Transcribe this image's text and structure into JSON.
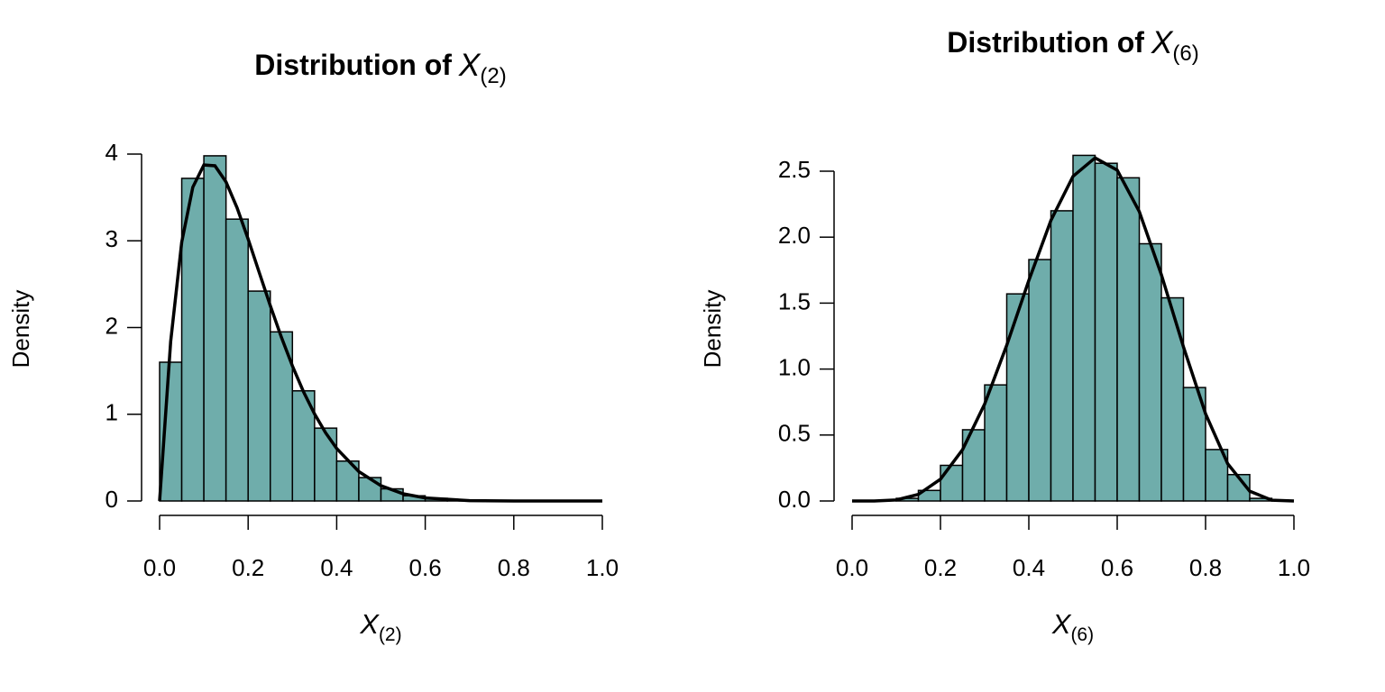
{
  "chart_data": [
    {
      "type": "histogram",
      "title": {
        "text": "Distribution of",
        "symbol": "X",
        "subscript": "(2)"
      },
      "x_label": {
        "symbol": "X",
        "subscript": "(2)"
      },
      "y_label": "Density",
      "bins": [
        0,
        0.05,
        0.1,
        0.15,
        0.2,
        0.25,
        0.3,
        0.35,
        0.4,
        0.45,
        0.5,
        0.55,
        0.6,
        0.65,
        0.7,
        0.75,
        0.8,
        0.85,
        0.9,
        0.95,
        1
      ],
      "values": [
        1.6,
        3.72,
        3.98,
        3.25,
        2.42,
        1.95,
        1.27,
        0.84,
        0.46,
        0.27,
        0.14,
        0.06,
        0.03,
        0.01,
        0,
        0,
        0,
        0,
        0,
        0
      ],
      "color": "#6fadab",
      "xlim": [
        0,
        1
      ],
      "xticks": [
        {
          "value": 0,
          "label": "0.0"
        },
        0.2,
        0.4,
        0.6,
        0.8,
        {
          "value": 1,
          "label": "1.0"
        }
      ],
      "ylim": [
        0,
        4
      ],
      "yticks": [
        0,
        1,
        2,
        3,
        4
      ],
      "curve": {
        "color": "#000000",
        "x": [
          0,
          0.025,
          0.05,
          0.075,
          0.1,
          0.125,
          0.15,
          0.175,
          0.2,
          0.225,
          0.25,
          0.275,
          0.3,
          0.325,
          0.35,
          0.375,
          0.4,
          0.45,
          0.5,
          0.55,
          0.6,
          0.7,
          0.8,
          0.9,
          1
        ],
        "y": [
          0,
          1.838,
          2.985,
          3.618,
          3.874,
          3.865,
          3.679,
          3.38,
          3.02,
          2.635,
          2.253,
          1.889,
          1.557,
          1.26,
          1.004,
          0.786,
          0.605,
          0.339,
          0.176,
          0.083,
          0.035,
          0.004,
          0,
          0,
          0
        ]
      }
    },
    {
      "type": "histogram",
      "title": {
        "text": "Distribution of",
        "symbol": "X",
        "subscript": "(6)"
      },
      "x_label": {
        "symbol": "X",
        "subscript": "(6)"
      },
      "y_label": "Density",
      "bins": [
        0,
        0.05,
        0.1,
        0.15,
        0.2,
        0.25,
        0.3,
        0.35,
        0.4,
        0.45,
        0.5,
        0.55,
        0.6,
        0.65,
        0.7,
        0.75,
        0.8,
        0.85,
        0.9,
        0.95,
        1
      ],
      "values": [
        0,
        0,
        0.02,
        0.08,
        0.27,
        0.54,
        0.88,
        1.57,
        1.83,
        2.2,
        2.62,
        2.56,
        2.45,
        1.95,
        1.54,
        0.86,
        0.39,
        0.2,
        0.02,
        0
      ],
      "color": "#6fadab",
      "xlim": [
        0,
        1
      ],
      "xticks": [
        {
          "value": 0,
          "label": "0.0"
        },
        0.2,
        0.4,
        0.6,
        0.8,
        {
          "value": 1,
          "label": "1.0"
        }
      ],
      "ylim": [
        0,
        2.5
      ],
      "yticks": [
        {
          "value": 0,
          "label": "0.0"
        },
        0.5,
        {
          "value": 1,
          "label": "1.0"
        },
        1.5,
        {
          "value": 2,
          "label": "2.0"
        },
        2.5
      ],
      "curve": {
        "color": "#000000",
        "x": [
          0,
          0.05,
          0.1,
          0.15,
          0.2,
          0.25,
          0.3,
          0.35,
          0.4,
          0.45,
          0.5,
          0.55,
          0.6,
          0.65,
          0.7,
          0.75,
          0.8,
          0.85,
          0.9,
          0.95,
          1
        ],
        "y": [
          0,
          0,
          0.008,
          0.05,
          0.165,
          0.389,
          0.735,
          1.181,
          1.672,
          2.127,
          2.461,
          2.601,
          2.508,
          2.194,
          1.715,
          1.168,
          0.661,
          0.283,
          0.074,
          0.006,
          0
        ]
      }
    }
  ]
}
